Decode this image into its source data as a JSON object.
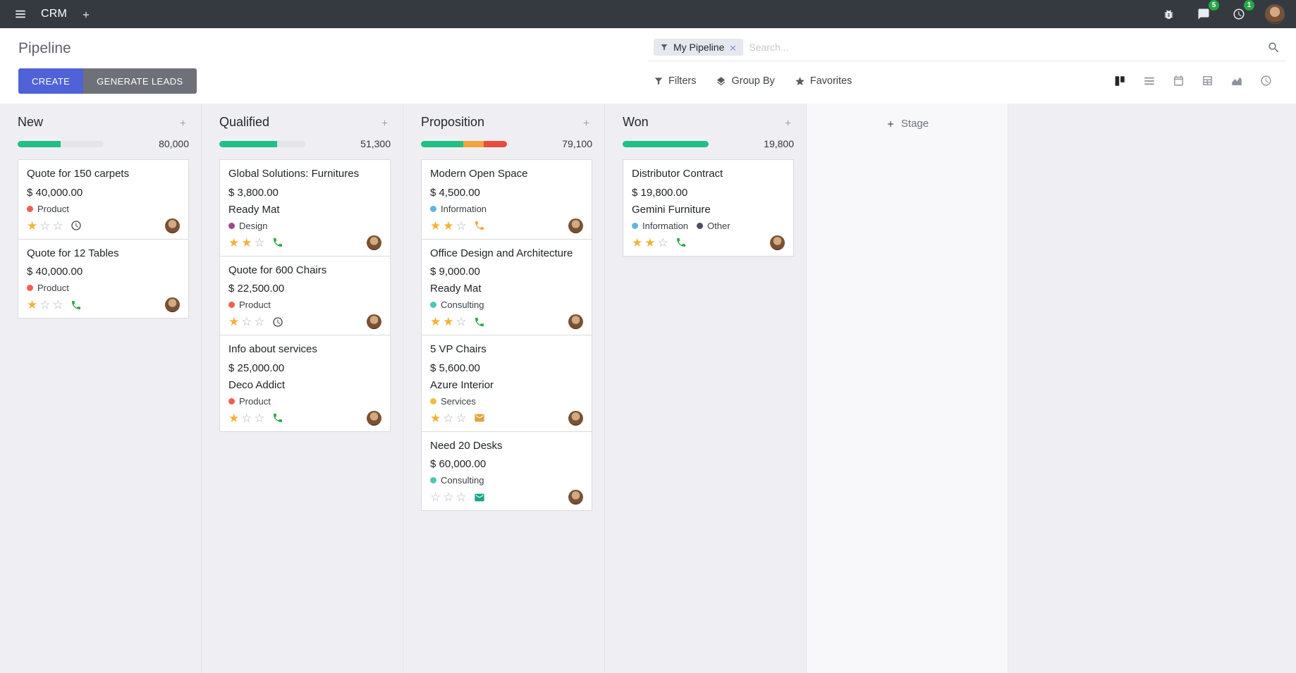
{
  "colors": {
    "accent": "#4f62d7",
    "navbar_bg": "#343a40",
    "badge_green": "#28a745",
    "progress_green": "#21c083",
    "progress_yellow": "#f2a53c",
    "progress_red": "#e74c3c"
  },
  "navbar": {
    "app_name": "CRM",
    "message_badge": "5",
    "activity_badge": "1"
  },
  "control_panel": {
    "title": "Pipeline",
    "create_label": "CREATE",
    "generate_leads_label": "GENERATE LEADS",
    "filters_label": "Filters",
    "group_by_label": "Group By",
    "favorites_label": "Favorites",
    "search": {
      "facet_label": "My Pipeline",
      "placeholder": "Search..."
    }
  },
  "board": {
    "add_stage_label": "Stage",
    "columns": [
      {
        "name": "New",
        "count": "80,000",
        "progress": {
          "segments": [
            {
              "color": "#21c083",
              "width": "50%"
            }
          ]
        },
        "cards": [
          {
            "title": "Quote for 150 carpets",
            "amount": "$ 40,000.00",
            "tags": [
              {
                "label": "Product",
                "color": "#f06050"
              }
            ],
            "stars": 1,
            "activity": {
              "type": "clock",
              "color": "#41454c"
            }
          },
          {
            "title": "Quote for 12 Tables",
            "amount": "$ 40,000.00",
            "tags": [
              {
                "label": "Product",
                "color": "#f06050"
              }
            ],
            "stars": 1,
            "activity": {
              "type": "phone",
              "color": "#28a745"
            }
          }
        ]
      },
      {
        "name": "Qualified",
        "count": "51,300",
        "progress": {
          "segments": [
            {
              "color": "#21c083",
              "width": "67%"
            }
          ]
        },
        "cards": [
          {
            "title": "Global Solutions: Furnitures",
            "amount": "$ 3,800.00",
            "partner": "Ready Mat",
            "tags": [
              {
                "label": "Design",
                "color": "#a3478a"
              }
            ],
            "stars": 2,
            "activity": {
              "type": "phone",
              "color": "#28a745"
            }
          },
          {
            "title": "Quote for 600 Chairs",
            "amount": "$ 22,500.00",
            "tags": [
              {
                "label": "Product",
                "color": "#f06050"
              }
            ],
            "stars": 1,
            "activity": {
              "type": "clock",
              "color": "#41454c"
            }
          },
          {
            "title": "Info about services",
            "amount": "$ 25,000.00",
            "partner": "Deco Addict",
            "tags": [
              {
                "label": "Product",
                "color": "#f06050"
              }
            ],
            "stars": 1,
            "activity": {
              "type": "phone",
              "color": "#28a745"
            }
          }
        ]
      },
      {
        "name": "Proposition",
        "count": "79,100",
        "progress": {
          "segments": [
            {
              "color": "#21c083",
              "width": "49%"
            },
            {
              "color": "#f2a53c",
              "width": "24%"
            },
            {
              "color": "#e74c3c",
              "width": "27%"
            }
          ]
        },
        "cards": [
          {
            "title": "Modern Open Space",
            "amount": "$ 4,500.00",
            "tags": [
              {
                "label": "Information",
                "color": "#62b4e4"
              }
            ],
            "stars": 2,
            "activity": {
              "type": "phone",
              "color": "#eda73c"
            }
          },
          {
            "title": "Office Design and Architecture",
            "amount": "$ 9,000.00",
            "partner": "Ready Mat",
            "tags": [
              {
                "label": "Consulting",
                "color": "#4fc5b5"
              }
            ],
            "stars": 2,
            "activity": {
              "type": "phone",
              "color": "#28a745"
            }
          },
          {
            "title": "5 VP Chairs",
            "amount": "$ 5,600.00",
            "partner": "Azure Interior",
            "tags": [
              {
                "label": "Services",
                "color": "#efbf45"
              }
            ],
            "stars": 1,
            "activity": {
              "type": "envelope",
              "color": "#e5a23c"
            }
          },
          {
            "title": "Need 20 Desks",
            "amount": "$ 60,000.00",
            "tags": [
              {
                "label": "Consulting",
                "color": "#4fc5b5"
              }
            ],
            "stars": 0,
            "activity": {
              "type": "envelope",
              "color": "#17a589"
            }
          }
        ]
      },
      {
        "name": "Won",
        "count": "19,800",
        "progress": {
          "segments": [
            {
              "color": "#21c083",
              "width": "100%"
            }
          ]
        },
        "cards": [
          {
            "title": "Distributor Contract",
            "amount": "$ 19,800.00",
            "partner": "Gemini Furniture",
            "tags": [
              {
                "label": "Information",
                "color": "#62b4e4"
              },
              {
                "label": "Other",
                "color": "#4e4e60"
              }
            ],
            "stars": 2,
            "activity": {
              "type": "phone",
              "color": "#28a745"
            }
          }
        ]
      }
    ]
  }
}
